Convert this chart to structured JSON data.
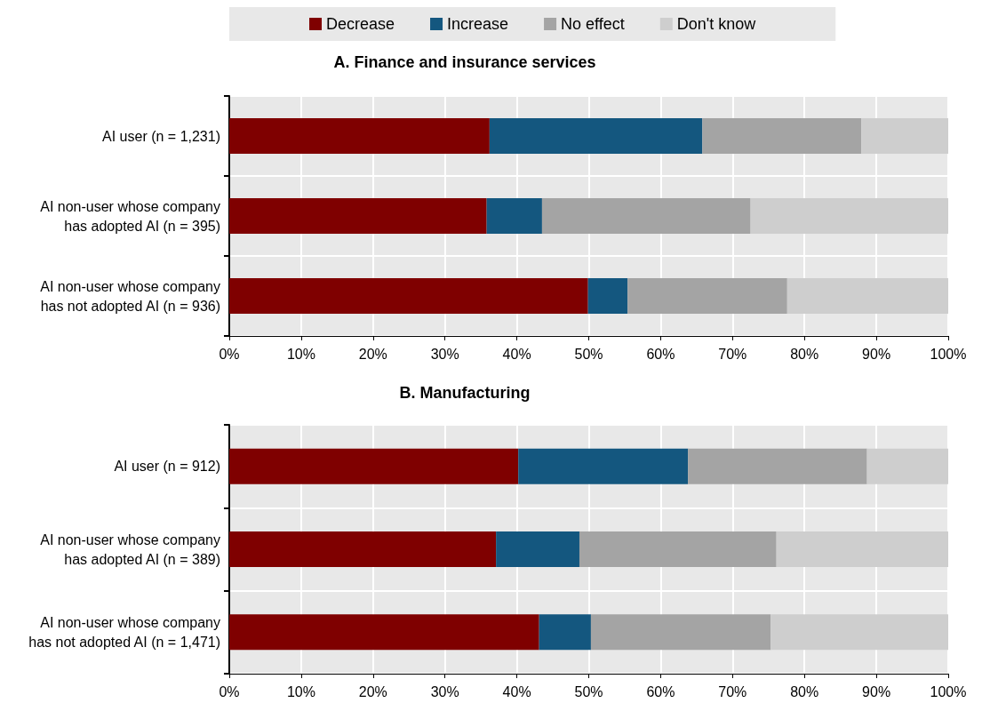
{
  "chart_data": [
    {
      "type": "bar",
      "orientation": "horizontal",
      "stacked": true,
      "title": "A. Finance and insurance services",
      "categories": [
        "AI user (n = 1,231)",
        "AI non-user whose company\nhas adopted AI (n = 395)",
        "AI non-user whose company\nhas not adopted AI (n = 936)"
      ],
      "series": [
        {
          "name": "Decrease",
          "color": "#7f0000",
          "values": [
            36.2,
            35.8,
            49.9
          ]
        },
        {
          "name": "Increase",
          "color": "#14577f",
          "values": [
            29.6,
            7.7,
            5.5
          ]
        },
        {
          "name": "No effect",
          "color": "#a4a4a4",
          "values": [
            22.1,
            29.0,
            22.2
          ]
        },
        {
          "name": "Don't know",
          "color": "#cecece",
          "values": [
            12.1,
            27.5,
            22.4
          ]
        }
      ],
      "xlim": [
        0,
        100
      ],
      "xticks": [
        {
          "value": 0,
          "label": "0%"
        },
        {
          "value": 10,
          "label": "10%"
        },
        {
          "value": 20,
          "label": "20%"
        },
        {
          "value": 30,
          "label": "30%"
        },
        {
          "value": 40,
          "label": "40%"
        },
        {
          "value": 50,
          "label": "50%"
        },
        {
          "value": 60,
          "label": "60%"
        },
        {
          "value": 70,
          "label": "70%"
        },
        {
          "value": 80,
          "label": "80%"
        },
        {
          "value": 90,
          "label": "90%"
        },
        {
          "value": 100,
          "label": "100%"
        }
      ],
      "grid": true,
      "legend": "top"
    },
    {
      "type": "bar",
      "orientation": "horizontal",
      "stacked": true,
      "title": "B. Manufacturing",
      "categories": [
        "AI user (n = 912)",
        "AI non-user whose company\nhas adopted AI (n = 389)",
        "AI non-user whose company\nhas not adopted AI (n = 1,471)"
      ],
      "series": [
        {
          "color": "#7f0000",
          "values": [
            40.2,
            37.1,
            43.1
          ]
        },
        {
          "color": "#14577f",
          "values": [
            23.6,
            11.6,
            7.2
          ]
        },
        {
          "color": "#a4a4a4",
          "values": [
            24.9,
            27.4,
            25.0
          ]
        },
        {
          "color": "#cecece",
          "values": [
            11.3,
            23.9,
            24.7
          ]
        }
      ],
      "xlim": [
        0,
        100
      ],
      "xticks": [
        {
          "value": 0,
          "label": "0%"
        },
        {
          "value": 10,
          "label": "10%"
        },
        {
          "value": 20,
          "label": "20%"
        },
        {
          "value": 30,
          "label": "30%"
        },
        {
          "value": 40,
          "label": "40%"
        },
        {
          "value": 50,
          "label": "50%"
        },
        {
          "value": 60,
          "label": "60%"
        },
        {
          "value": 70,
          "label": "70%"
        },
        {
          "value": 80,
          "label": "80%"
        },
        {
          "value": 90,
          "label": "90%"
        },
        {
          "value": 100,
          "label": "100%"
        }
      ],
      "grid": true,
      "legend": false
    }
  ]
}
